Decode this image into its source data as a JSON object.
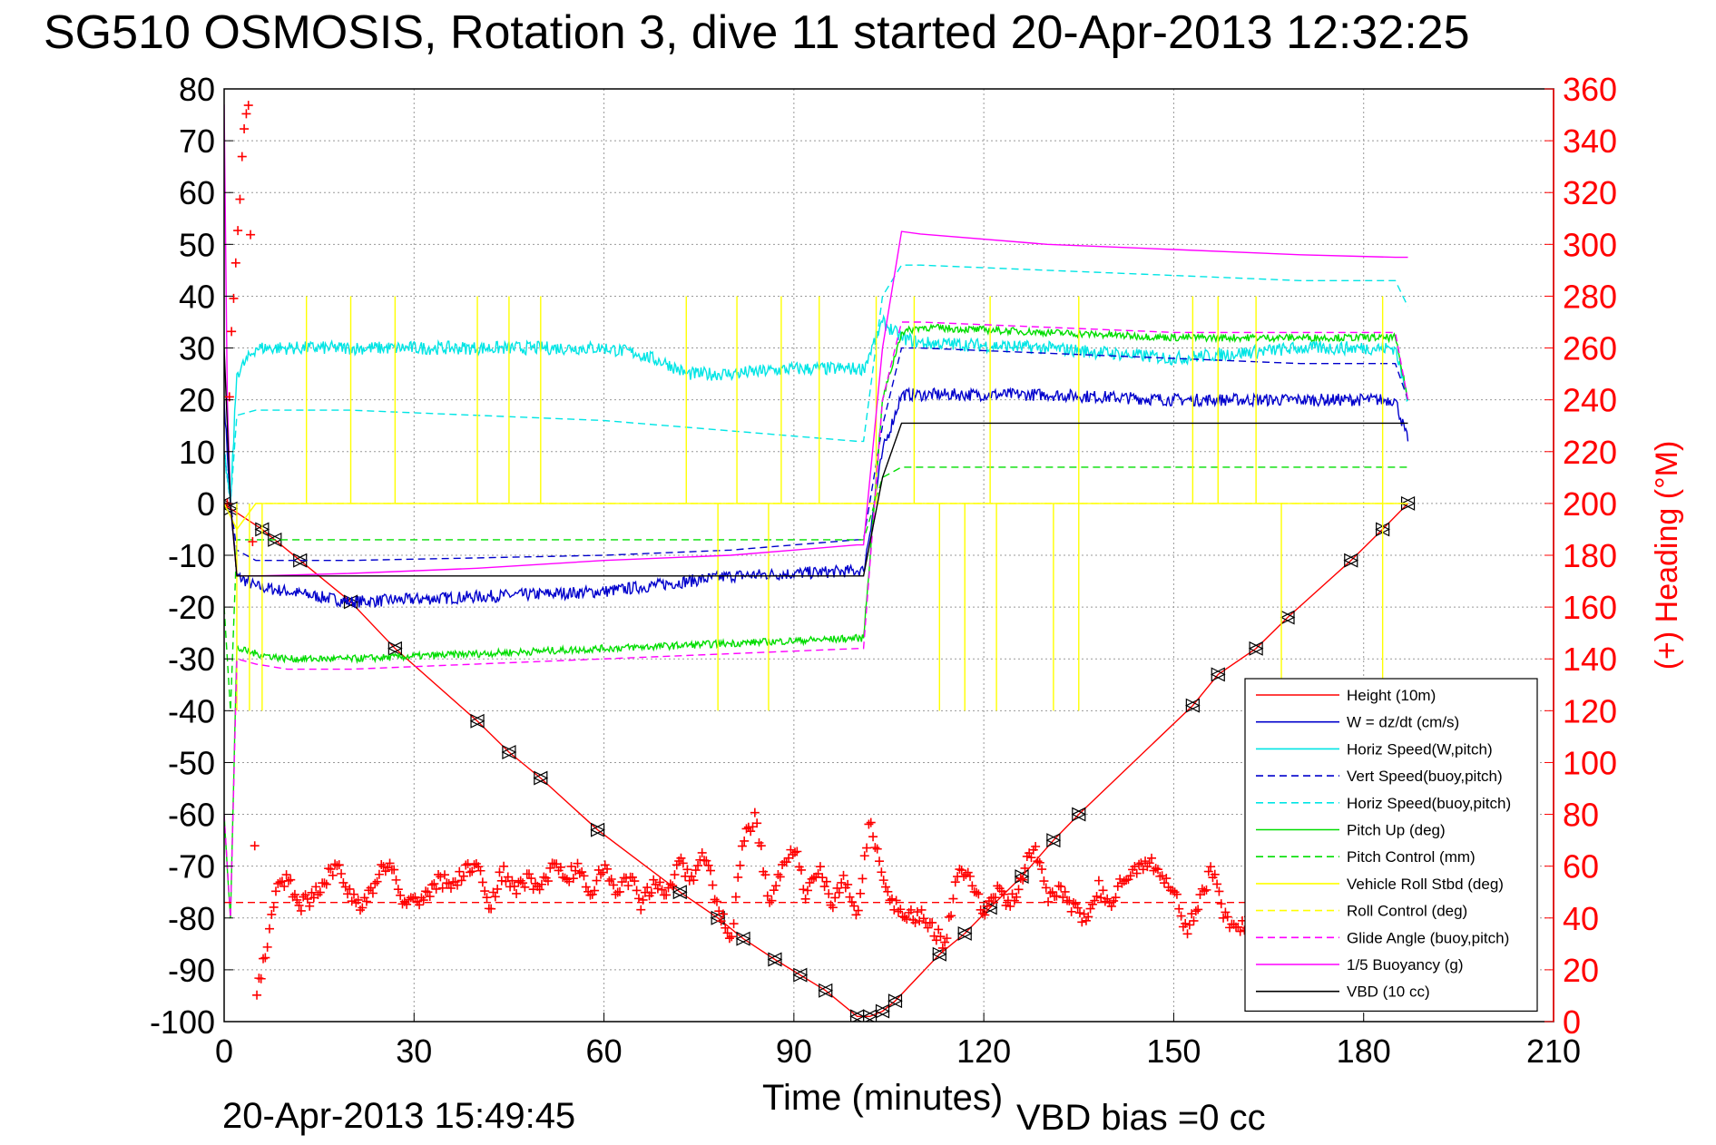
{
  "page": {
    "title": "SG510 OSMOSIS, Rotation 3, dive 11 started 20-Apr-2013 12:32:25",
    "timestamp": "20-Apr-2013 15:49:45",
    "vbd_bias": "VBD bias =0 cc"
  },
  "colors": {
    "height": "#ff0000",
    "w": "#0000cc",
    "cyan": "#00e5e5",
    "green": "#00dd00",
    "yellow": "#ffff00",
    "magenta": "#ff00ff",
    "black": "#000000",
    "heading": "#ff0000"
  },
  "chart_data": {
    "type": "line",
    "xlabel": "Time (minutes)",
    "ylabel_right": "(+) Heading (°M)",
    "xlim": [
      0,
      210
    ],
    "ylim": [
      -100,
      80
    ],
    "ylim_right": [
      0,
      360
    ],
    "xticks": [
      0,
      30,
      60,
      90,
      120,
      150,
      180,
      210
    ],
    "yticks": [
      80,
      70,
      60,
      50,
      40,
      30,
      20,
      10,
      0,
      -10,
      -20,
      -30,
      -40,
      -50,
      -60,
      -70,
      -80,
      -90,
      -100
    ],
    "yticks_right": [
      360,
      340,
      320,
      300,
      280,
      260,
      240,
      220,
      200,
      180,
      160,
      140,
      120,
      100,
      80,
      60,
      40,
      20,
      0
    ],
    "grid": true,
    "legend_position": "bottom-right",
    "series": [
      {
        "name": "Height (10m)",
        "color": "#ff0000",
        "dash": false,
        "x": [
          0,
          1,
          6,
          8,
          12,
          20,
          27,
          40,
          45,
          50,
          59,
          72,
          78,
          82,
          87,
          91,
          95,
          100,
          102,
          104,
          106,
          113,
          117,
          121,
          126,
          131,
          135,
          153,
          157,
          163,
          168,
          178,
          183,
          187
        ],
        "y": [
          0,
          -1,
          -5,
          -7,
          -11,
          -19,
          -28,
          -42,
          -48,
          -53,
          -63,
          -75,
          -80,
          -84,
          -88,
          -91,
          -94,
          -99,
          -99,
          -98,
          -96,
          -87,
          -83,
          -78,
          -72,
          -65,
          -60,
          -39,
          -33,
          -28,
          -22,
          -11,
          -5,
          0
        ],
        "markers": true
      },
      {
        "name": "W = dz/dt (cm/s)",
        "color": "#0000cc",
        "dash": false,
        "x": [
          0,
          1,
          2,
          5,
          10,
          20,
          40,
          60,
          80,
          100,
          101,
          104,
          107,
          110,
          130,
          150,
          170,
          185,
          187
        ],
        "y": [
          20,
          0,
          -14,
          -16,
          -17,
          -19,
          -18,
          -17,
          -14,
          -13,
          -13,
          10,
          21,
          21,
          21,
          20,
          20,
          20,
          12
        ],
        "noise": 1.2
      },
      {
        "name": "Horiz Speed(W,pitch)",
        "color": "#00e5e5",
        "dash": false,
        "x": [
          0,
          1,
          2,
          5,
          10,
          20,
          40,
          55,
          60,
          65,
          70,
          73,
          80,
          90,
          100,
          101,
          104,
          107,
          110,
          130,
          150,
          170,
          185,
          187
        ],
        "y": [
          10,
          0,
          25,
          30,
          30,
          30,
          30,
          30,
          30,
          29,
          27,
          25,
          25,
          26,
          26,
          26,
          35,
          32,
          31,
          30,
          28,
          30,
          30,
          20
        ],
        "noise": 1.3
      },
      {
        "name": "Vert Speed(buoy,pitch)",
        "color": "#0000cc",
        "dash": true,
        "x": [
          0,
          1,
          2,
          5,
          20,
          40,
          60,
          80,
          100,
          101,
          104,
          107,
          110,
          130,
          150,
          170,
          185,
          187
        ],
        "y": [
          10,
          0,
          -9,
          -11,
          -11,
          -10.5,
          -10,
          -9,
          -7,
          -7,
          15,
          30,
          30,
          29,
          28,
          27,
          27,
          20
        ]
      },
      {
        "name": "Horiz Speed(buoy,pitch)",
        "color": "#00e5e5",
        "dash": true,
        "x": [
          0,
          1,
          2,
          5,
          20,
          40,
          60,
          80,
          100,
          101,
          104,
          107,
          110,
          130,
          150,
          170,
          185,
          187
        ],
        "y": [
          10,
          0,
          17,
          18,
          18,
          17,
          16,
          14,
          12,
          12,
          40,
          46,
          46,
          45,
          44,
          43,
          43,
          38
        ]
      },
      {
        "name": "Pitch Up (deg)",
        "color": "#00dd00",
        "dash": false,
        "x": [
          0,
          1,
          2,
          5,
          10,
          20,
          40,
          60,
          80,
          100,
          101,
          104,
          107,
          110,
          130,
          150,
          170,
          185,
          187
        ],
        "y": [
          -60,
          -80,
          -28,
          -29,
          -30,
          -30,
          -29,
          -28,
          -27,
          -26,
          -26,
          20,
          33,
          34,
          33,
          32,
          32,
          32,
          20
        ],
        "noise": 0.7
      },
      {
        "name": "Pitch Control (mm)",
        "color": "#00dd00",
        "dash": true,
        "x": [
          0,
          1,
          2,
          5,
          100,
          101,
          104,
          107,
          187
        ],
        "y": [
          -20,
          -40,
          -7,
          -7,
          -7,
          -7,
          5,
          7,
          7
        ]
      },
      {
        "name": "Vehicle Roll Stbd (deg)",
        "color": "#ffff00",
        "dash": false,
        "x": [
          0,
          2,
          5,
          100,
          104,
          187
        ],
        "y": [
          0,
          -5,
          0,
          0,
          0,
          0
        ],
        "spikes_up": [
          13,
          20,
          27,
          40,
          45,
          50,
          73,
          81,
          88,
          94,
          103,
          109,
          121,
          135,
          153,
          157,
          163,
          183
        ],
        "spikes_down": [
          2,
          4,
          6,
          78,
          86,
          113,
          117,
          122,
          131,
          135,
          167,
          183
        ]
      },
      {
        "name": "Roll Control (deg)",
        "color": "#ffff00",
        "dash": true,
        "x": [
          0,
          2,
          5,
          187
        ],
        "y": [
          0,
          -5,
          0,
          0
        ]
      },
      {
        "name": "Glide Angle (buoy,pitch)",
        "color": "#ff00ff",
        "dash": true,
        "x": [
          0,
          1,
          2,
          5,
          10,
          20,
          40,
          60,
          80,
          100,
          101,
          104,
          107,
          110,
          130,
          150,
          170,
          185,
          187
        ],
        "y": [
          -60,
          -80,
          -30,
          -31,
          -32,
          -32,
          -31,
          -30,
          -29,
          -28,
          -28,
          20,
          35,
          35,
          34,
          33,
          33,
          33,
          20
        ]
      },
      {
        "name": "1/5 Buoyancy (g)",
        "color": "#ff00ff",
        "dash": false,
        "x": [
          0,
          0.5,
          1,
          2,
          5,
          20,
          40,
          60,
          80,
          100,
          101,
          104,
          107,
          110,
          130,
          150,
          170,
          185,
          187
        ],
        "y": [
          77,
          20,
          0,
          -14,
          -14,
          -13.5,
          -12.5,
          -11,
          -10,
          -8,
          -8,
          30,
          52.5,
          52,
          50,
          49,
          48,
          47.5,
          47.5
        ]
      },
      {
        "name": "VBD (10 cc)",
        "color": "#000000",
        "dash": false,
        "x": [
          0,
          1,
          2,
          100,
          101,
          104,
          107,
          187
        ],
        "y": [
          30,
          0,
          -14,
          -14,
          -14,
          5,
          15.5,
          15.5
        ]
      }
    ],
    "heading": {
      "name": "(+) Heading (°M)",
      "axis": "right",
      "color": "#ff0000",
      "marker": "+",
      "mean_line": 46,
      "mean_line2_left": 160,
      "x": [
        0.5,
        1,
        2,
        3,
        4,
        5,
        6,
        7,
        8,
        10,
        12,
        14,
        16,
        18,
        20,
        22,
        24,
        26,
        28,
        30,
        32,
        34,
        36,
        38,
        40,
        42,
        44,
        46,
        48,
        50,
        52,
        54,
        56,
        58,
        60,
        62,
        64,
        66,
        68,
        70,
        72,
        74,
        76,
        78,
        80,
        82,
        84,
        86,
        88,
        90,
        92,
        94,
        96,
        98,
        100,
        102,
        104,
        106,
        108,
        110,
        112,
        114,
        116,
        118,
        120,
        122,
        124,
        126,
        128,
        130,
        132,
        134,
        136,
        138,
        140,
        142,
        144,
        146,
        148,
        150,
        152,
        154,
        156,
        158,
        160,
        162
      ],
      "y": [
        200,
        260,
        300,
        340,
        360,
        10,
        20,
        30,
        50,
        55,
        45,
        48,
        55,
        62,
        47,
        44,
        55,
        63,
        47,
        45,
        50,
        55,
        52,
        58,
        60,
        45,
        58,
        52,
        55,
        50,
        62,
        55,
        60,
        50,
        60,
        48,
        56,
        45,
        55,
        50,
        62,
        55,
        65,
        45,
        30,
        70,
        80,
        45,
        60,
        68,
        48,
        60,
        45,
        55,
        40,
        80,
        55,
        45,
        40,
        42,
        35,
        30,
        60,
        55,
        40,
        50,
        45,
        55,
        70,
        48,
        50,
        45,
        40,
        52,
        45,
        55,
        60,
        62,
        58,
        50,
        35,
        45,
        60,
        40,
        35,
        40
      ]
    }
  }
}
